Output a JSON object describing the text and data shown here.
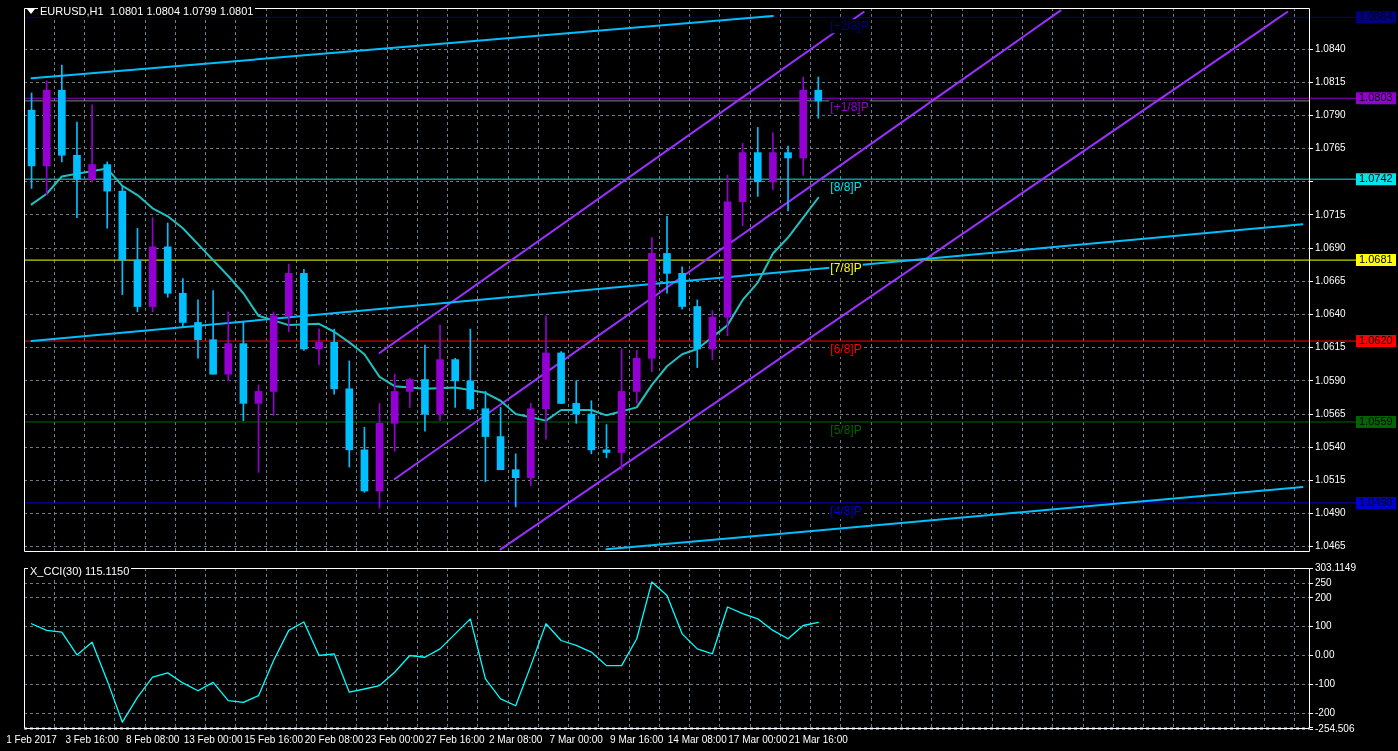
{
  "chart_data": [
    {
      "type": "candlestick",
      "title": "EURUSD,H1  1.0801 1.0804 1.0799 1.0801",
      "categories": [
        "1 Feb 2017",
        null,
        null,
        null,
        "3 Feb 16:00",
        null,
        null,
        null,
        "8 Feb 08:00",
        null,
        null,
        null,
        "13 Feb 00:00",
        null,
        null,
        null,
        "15 Feb 16:00",
        null,
        null,
        null,
        "20 Feb 08:00",
        null,
        null,
        null,
        "23 Feb 00:00",
        null,
        null,
        null,
        "27 Feb 16:00",
        null,
        null,
        null,
        "2 Mar 08:00",
        null,
        null,
        null,
        "7 Mar 00:00",
        null,
        null,
        null,
        "9 Mar 16:00",
        null,
        null,
        null,
        "14 Mar 08:00",
        null,
        null,
        null,
        "17 Mar 00:00",
        null,
        null,
        null,
        "21 Mar 16:00",
        null,
        null,
        null,
        null,
        null,
        null,
        null,
        null,
        null,
        null,
        null,
        null,
        null,
        null,
        null,
        null,
        null,
        null,
        null,
        null,
        null,
        null,
        null,
        null,
        null,
        null,
        null,
        null,
        null,
        null,
        null,
        null
      ],
      "series": [
        {
          "type": "candlestick",
          "ohlc": [
            [
              1.0794,
              1.0807,
              1.0735,
              1.0752
            ],
            [
              1.0752,
              1.0816,
              1.073,
              1.0809
            ],
            [
              1.0809,
              1.0828,
              1.0755,
              1.076
            ],
            [
              1.076,
              1.0785,
              1.0713,
              1.0742
            ],
            [
              1.0742,
              1.0798,
              1.074,
              1.0753
            ],
            [
              1.0753,
              1.0755,
              1.0705,
              1.0733
            ],
            [
              1.0733,
              1.0737,
              1.0655,
              1.0681
            ],
            [
              1.0681,
              1.0705,
              1.0642,
              1.0646
            ],
            [
              1.0646,
              1.0713,
              1.0642,
              1.0691
            ],
            [
              1.0691,
              1.0709,
              1.0653,
              1.0656
            ],
            [
              1.0656,
              1.0667,
              1.063,
              1.0634
            ],
            [
              1.0634,
              1.0651,
              1.0607,
              1.0621
            ],
            [
              1.0621,
              1.0658,
              1.0595,
              1.0595
            ],
            [
              1.0595,
              1.0642,
              1.059,
              1.0618
            ],
            [
              1.0618,
              1.0634,
              1.056,
              1.0573
            ],
            [
              1.0573,
              1.0587,
              1.0521,
              1.0582
            ],
            [
              1.0582,
              1.0642,
              1.0564,
              1.0639
            ],
            [
              1.0639,
              1.0678,
              1.0627,
              1.0671
            ],
            [
              1.0671,
              1.0674,
              1.0613,
              1.0614
            ],
            [
              1.0614,
              1.0629,
              1.0602,
              1.0619
            ],
            [
              1.0619,
              1.0629,
              1.058,
              1.0584
            ],
            [
              1.0584,
              1.0605,
              1.0525,
              1.0538
            ],
            [
              1.0538,
              1.0555,
              1.0506,
              1.0507
            ],
            [
              1.0507,
              1.0573,
              1.0494,
              1.0558
            ],
            [
              1.0558,
              1.0595,
              1.0537,
              1.0582
            ],
            [
              1.0582,
              1.0592,
              1.057,
              1.0591
            ],
            [
              1.0591,
              1.0617,
              1.0552,
              1.0565
            ],
            [
              1.0565,
              1.0632,
              1.056,
              1.0606
            ],
            [
              1.0606,
              1.0607,
              1.057,
              1.059
            ],
            [
              1.059,
              1.0629,
              1.0568,
              1.0569
            ],
            [
              1.0569,
              1.0582,
              1.0514,
              1.0548
            ],
            [
              1.0548,
              1.057,
              1.0523,
              1.0523
            ],
            [
              1.0523,
              1.0535,
              1.0495,
              1.0517
            ],
            [
              1.0517,
              1.0573,
              1.0511,
              1.0569
            ],
            [
              1.0569,
              1.0639,
              1.0546,
              1.0611
            ],
            [
              1.0611,
              1.0612,
              1.0573,
              1.0573
            ],
            [
              1.0573,
              1.059,
              1.0558,
              1.0565
            ],
            [
              1.0565,
              1.0575,
              1.0535,
              1.0538
            ],
            [
              1.0538,
              1.0557,
              1.0532,
              1.0536
            ],
            [
              1.0536,
              1.0614,
              1.0523,
              1.0582
            ],
            [
              1.0582,
              1.0613,
              1.0573,
              1.0607
            ],
            [
              1.0607,
              1.0698,
              1.0597,
              1.0686
            ],
            [
              1.0686,
              1.0714,
              1.0656,
              1.0671
            ],
            [
              1.0671,
              1.0676,
              1.0644,
              1.0646
            ],
            [
              1.0646,
              1.0651,
              1.06,
              1.0614
            ],
            [
              1.0614,
              1.0643,
              1.0606,
              1.0638
            ],
            [
              1.0638,
              1.0745,
              1.0624,
              1.0725
            ],
            [
              1.0725,
              1.0769,
              1.0707,
              1.0762
            ],
            [
              1.0762,
              1.0781,
              1.0729,
              1.074
            ],
            [
              1.074,
              1.0777,
              1.0734,
              1.0762
            ],
            [
              1.0762,
              1.0767,
              1.0718,
              1.0758
            ],
            [
              1.0758,
              1.0819,
              1.0745,
              1.0809
            ],
            [
              1.0809,
              1.0819,
              1.0788,
              1.0801
            ],
            null,
            null,
            null,
            null,
            null,
            null,
            null,
            null,
            null,
            null,
            null,
            null,
            null,
            null,
            null,
            null,
            null,
            null,
            null,
            null,
            null,
            null,
            null,
            null,
            null,
            null,
            null,
            null,
            null,
            null,
            null,
            null
          ],
          "colors": [
            "#00bfff",
            "#9400d3",
            "#00bfff",
            "#00bfff",
            "#9400d3",
            "#00bfff",
            "#00bfff",
            "#00bfff",
            "#9400d3",
            "#00bfff",
            "#00bfff",
            "#00bfff",
            "#00bfff",
            "#9400d3",
            "#00bfff",
            "#9400d3",
            "#9400d3",
            "#9400d3",
            "#00bfff",
            "#9400d3",
            "#00bfff",
            "#00bfff",
            "#00bfff",
            "#9400d3",
            "#9400d3",
            "#9400d3",
            "#00bfff",
            "#9400d3",
            "#00bfff",
            "#00bfff",
            "#00bfff",
            "#00bfff",
            "#00bfff",
            "#9400d3",
            "#9400d3",
            "#00bfff",
            "#00bfff",
            "#00bfff",
            "#00bfff",
            "#9400d3",
            "#9400d3",
            "#9400d3",
            "#00bfff",
            "#00bfff",
            "#00bfff",
            "#9400d3",
            "#9400d3",
            "#9400d3",
            "#00bfff",
            "#9400d3",
            "#00bfff",
            "#9400d3",
            "#00bfff",
            null,
            null,
            null,
            null,
            null,
            null,
            null,
            null,
            null,
            null,
            null,
            null,
            null,
            null,
            null,
            null,
            null,
            null,
            null,
            null,
            null,
            null,
            null,
            null,
            null,
            null,
            null,
            null,
            null,
            null,
            null,
            null
          ]
        },
        {
          "type": "line",
          "color": "#20c0c0",
          "values": [
            1.0723,
            1.0731,
            1.0744,
            1.0746,
            null,
            1.075,
            1.0737,
            1.073,
            1.072,
            1.0714,
            1.0705,
            1.0693,
            1.0681,
            1.0669,
            1.0656,
            1.0639,
            null,
            1.0632,
            null,
            1.0633,
            1.0627,
            1.0619,
            1.061,
            1.0593,
            1.0586,
            null,
            1.0584,
            null,
            1.0585,
            null,
            1.0581,
            1.0575,
            1.0565,
            null,
            1.056,
            1.0568,
            null,
            1.0568,
            1.0564,
            null,
            1.057,
            1.0587,
            1.0601,
            1.061,
            1.0614,
            null,
            1.0632,
            1.0651,
            1.0664,
            1.0686,
            1.0698,
            1.0713,
            1.0728,
            null,
            null,
            null,
            null,
            null,
            null,
            null,
            null,
            null,
            null,
            null,
            null,
            null,
            null,
            null,
            null,
            null,
            null,
            null,
            null,
            null,
            null,
            null,
            null,
            null,
            null,
            null,
            null,
            null,
            null,
            null,
            null
          ]
        },
        {
          "type": "line",
          "color": "#00bfff",
          "values": [
            1.0818,
            null,
            null,
            null,
            null,
            null,
            null,
            null,
            null,
            null,
            null,
            null,
            null,
            null,
            null,
            null,
            null,
            null,
            null,
            null,
            null,
            null,
            null,
            null,
            null,
            null,
            null,
            null,
            null,
            null,
            null,
            null,
            null,
            null,
            null,
            null,
            null,
            null,
            null,
            null,
            null,
            null,
            null,
            null,
            null,
            null,
            null,
            null,
            null,
            1.0865,
            null,
            null,
            null,
            null,
            null,
            null,
            null,
            null,
            null,
            null,
            null,
            null,
            null,
            null,
            null,
            null,
            null,
            null,
            null,
            null,
            null,
            null,
            null,
            null,
            null,
            null,
            null,
            null,
            null,
            null,
            null,
            null,
            null,
            null,
            null
          ]
        },
        {
          "type": "line",
          "color": "#00bfff",
          "values": [
            1.062,
            null,
            null,
            null,
            null,
            null,
            null,
            null,
            null,
            null,
            null,
            null,
            null,
            null,
            null,
            null,
            null,
            null,
            null,
            null,
            null,
            null,
            null,
            null,
            null,
            null,
            null,
            null,
            null,
            null,
            null,
            null,
            null,
            null,
            null,
            null,
            null,
            null,
            null,
            null,
            null,
            null,
            null,
            null,
            null,
            null,
            null,
            null,
            null,
            null,
            null,
            null,
            null,
            null,
            null,
            null,
            null,
            null,
            null,
            null,
            null,
            null,
            null,
            null,
            null,
            null,
            null,
            null,
            null,
            null,
            null,
            null,
            null,
            null,
            null,
            null,
            null,
            null,
            null,
            null,
            null,
            null,
            null,
            null,
            1.0708
          ]
        },
        {
          "type": "line",
          "color": "#00bfff",
          "values": [
            null,
            null,
            null,
            null,
            null,
            null,
            null,
            null,
            null,
            null,
            null,
            null,
            null,
            null,
            null,
            null,
            null,
            null,
            null,
            null,
            null,
            null,
            null,
            null,
            null,
            null,
            null,
            null,
            null,
            null,
            null,
            null,
            null,
            null,
            null,
            null,
            null,
            null,
            1.0463,
            null,
            null,
            null,
            null,
            null,
            null,
            null,
            null,
            null,
            null,
            null,
            null,
            null,
            null,
            null,
            null,
            null,
            null,
            null,
            null,
            null,
            null,
            null,
            null,
            null,
            null,
            null,
            null,
            null,
            null,
            null,
            null,
            null,
            null,
            null,
            null,
            null,
            null,
            null,
            null,
            null,
            null,
            null,
            null,
            null,
            1.051
          ]
        },
        {
          "type": "line",
          "color": "#9b30ff",
          "values": [
            null,
            null,
            null,
            null,
            null,
            null,
            null,
            null,
            null,
            null,
            null,
            null,
            null,
            null,
            null,
            null,
            null,
            null,
            null,
            null,
            null,
            null,
            null,
            1.0611,
            null,
            null,
            null,
            null,
            null,
            null,
            null,
            null,
            null,
            null,
            null,
            null,
            null,
            null,
            null,
            null,
            null,
            null,
            null,
            null,
            null,
            null,
            null,
            null,
            null,
            null,
            null,
            null,
            null,
            null,
            null,
            1.0868,
            null,
            null,
            null,
            null,
            null,
            null,
            null,
            null,
            null,
            null,
            null,
            null,
            null,
            null,
            null,
            null,
            null,
            null,
            null,
            null,
            null,
            null,
            null,
            null,
            null,
            null,
            null,
            null,
            null
          ]
        },
        {
          "type": "line",
          "color": "#9b30ff",
          "values": [
            null,
            null,
            null,
            null,
            null,
            null,
            null,
            null,
            null,
            null,
            null,
            null,
            null,
            null,
            null,
            null,
            null,
            null,
            null,
            null,
            null,
            null,
            null,
            null,
            1.0516,
            null,
            null,
            null,
            null,
            null,
            null,
            null,
            null,
            null,
            null,
            null,
            null,
            null,
            null,
            null,
            null,
            null,
            null,
            null,
            null,
            null,
            null,
            null,
            null,
            null,
            null,
            null,
            null,
            null,
            null,
            null,
            null,
            null,
            null,
            null,
            null,
            null,
            null,
            null,
            null,
            null,
            null,
            null,
            1.0869,
            null,
            null,
            null,
            null,
            null,
            null,
            null,
            null,
            null,
            null,
            null,
            null,
            null,
            null,
            null,
            null
          ]
        },
        {
          "type": "line",
          "color": "#9b30ff",
          "values": [
            null,
            null,
            null,
            null,
            null,
            null,
            null,
            null,
            null,
            null,
            null,
            null,
            null,
            null,
            null,
            null,
            null,
            null,
            null,
            null,
            null,
            null,
            null,
            null,
            null,
            null,
            null,
            null,
            null,
            null,
            null,
            1.0463,
            null,
            null,
            null,
            null,
            null,
            null,
            null,
            null,
            null,
            null,
            null,
            null,
            null,
            null,
            null,
            null,
            null,
            null,
            null,
            null,
            null,
            null,
            null,
            null,
            null,
            null,
            null,
            null,
            null,
            null,
            null,
            null,
            null,
            null,
            null,
            null,
            null,
            null,
            null,
            null,
            null,
            null,
            null,
            null,
            null,
            null,
            null,
            null,
            null,
            null,
            null,
            1.0868,
            null
          ]
        }
      ],
      "ylim": [
        1.0461,
        1.0871
      ],
      "yticks": [
        1.0465,
        {
          "value": 1.049,
          "label": "1.0490"
        },
        1.0515,
        {
          "value": 1.054,
          "label": "1.0540"
        },
        1.0565,
        {
          "value": 1.059,
          "label": "1.0590"
        },
        1.0615,
        {
          "value": 1.064,
          "label": "1.0640"
        },
        1.0665,
        {
          "value": 1.069,
          "label": "1.0690"
        },
        1.0715,
        {
          "value": 1.074,
          "label": null
        },
        1.0765,
        {
          "value": 1.079,
          "label": "1.0790"
        },
        1.0815,
        {
          "value": 1.084,
          "label": "1.0840"
        }
      ],
      "ref_lines": [
        {
          "axis": "y",
          "value": 1.0864,
          "label": "1.0864",
          "color": "#000080"
        },
        {
          "axis": "y",
          "value": 1.0803,
          "label": "1.0803",
          "color": "#9400d3"
        },
        {
          "axis": "y",
          "value": 1.0801,
          "color": "#808080"
        },
        {
          "axis": "y",
          "value": 1.0742,
          "label": "1.0742",
          "color": "#00e5ee"
        },
        {
          "axis": "y",
          "value": 1.0681,
          "label": "1.0681",
          "color": "#ffff00"
        },
        {
          "axis": "y",
          "value": 1.062,
          "label": "1.0620",
          "color": "#ff0000"
        },
        {
          "axis": "y",
          "value": 1.0559,
          "label": "1.0559",
          "color": "#006400"
        },
        {
          "axis": "y",
          "value": 1.0498,
          "label": "1.0498",
          "color": "#0000cd"
        }
      ],
      "annotations": [
        {
          "text": "[+2/8]P",
          "x": "21 Mar 16:00",
          "y": 1.0864
        },
        {
          "text": "[+1/8]P",
          "x": "21 Mar 16:00",
          "y": 1.0803
        },
        {
          "text": "[8/8]P",
          "x": "21 Mar 16:00",
          "y": 1.0742
        },
        {
          "text": "[7/8]P",
          "x": "21 Mar 16:00",
          "y": 1.0681
        },
        {
          "text": "[6/8]P",
          "x": "21 Mar 16:00",
          "y": 1.062
        },
        {
          "text": "[5/8]P",
          "x": "21 Mar 16:00",
          "y": 1.0559
        },
        {
          "text": "[4/8]P",
          "x": "21 Mar 16:00",
          "y": 1.0498
        }
      ],
      "grid": true,
      "tick_labels": "y"
    },
    {
      "type": "line",
      "title": "X_CCI(30) 115.1150",
      "categories": [
        "1 Feb 2017",
        null,
        null,
        null,
        "3 Feb 16:00",
        null,
        null,
        null,
        "8 Feb 08:00",
        null,
        null,
        null,
        "13 Feb 00:00",
        null,
        null,
        null,
        "15 Feb 16:00",
        null,
        null,
        null,
        "20 Feb 08:00",
        null,
        null,
        null,
        "23 Feb 00:00",
        null,
        null,
        null,
        "27 Feb 16:00",
        null,
        null,
        null,
        "2 Mar 08:00",
        null,
        null,
        null,
        "7 Mar 00:00",
        null,
        null,
        null,
        "9 Mar 16:00",
        null,
        null,
        null,
        "14 Mar 08:00",
        null,
        null,
        null,
        "17 Mar 00:00",
        null,
        null,
        null,
        "21 Mar 16:00",
        null,
        null,
        null,
        null,
        null,
        null,
        null,
        null,
        null,
        null,
        null,
        null,
        null,
        null,
        null,
        null,
        null,
        null,
        null,
        null,
        null,
        null,
        null,
        null,
        null,
        null,
        null,
        null,
        null,
        null,
        null,
        null
      ],
      "color": "#00ffff",
      "values": [
        110,
        87,
        81,
        2,
        46,
        -87,
        -231,
        -145,
        -75,
        -60,
        -95,
        -122,
        -93,
        -156,
        -162,
        -139,
        -17,
        87,
        116,
        0,
        6,
        -127,
        -116,
        -104,
        -58,
        0,
        -6,
        23,
        75,
        127,
        -81,
        -150,
        -174,
        -35,
        110,
        52,
        35,
        12,
        -35,
        -35,
        58,
        255,
        208,
        75,
        23,
        6,
        168,
        145,
        127,
        87,
        58,
        104,
        115,
        null,
        null,
        null,
        null,
        null,
        null,
        null,
        null,
        null,
        null,
        null,
        null,
        null,
        null,
        null,
        null,
        null,
        null,
        null,
        null,
        null,
        null,
        null,
        null,
        null,
        null,
        null,
        null,
        null,
        null,
        null,
        null
      ],
      "ylim": [
        -254.506,
        303.1149
      ],
      "yticks": [
        {
          "value": -254.506,
          "label": "-254.506"
        },
        {
          "value": -250,
          "label": null
        },
        -200,
        -100,
        {
          "value": 0,
          "label": "0.00"
        },
        100,
        200,
        250,
        {
          "value": 303.1149,
          "label": "303.1149"
        }
      ],
      "grid": true
    }
  ]
}
